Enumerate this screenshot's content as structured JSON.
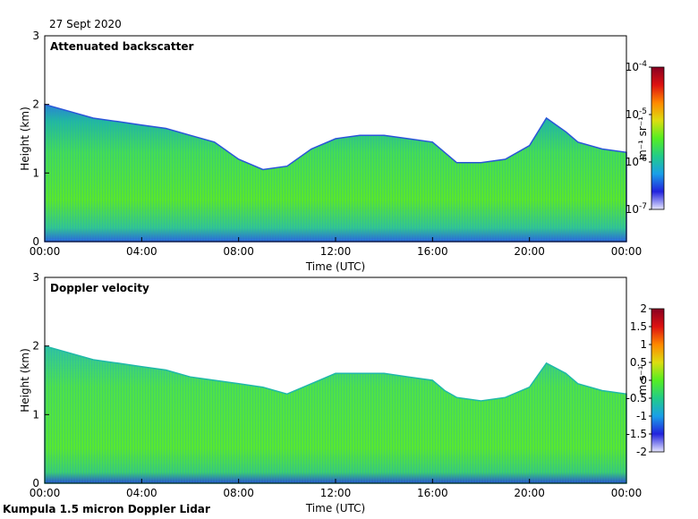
{
  "date_label": "27 Sept 2020",
  "footer_label": "Kumpula 1.5 micron Doppler Lidar",
  "chart_data": [
    {
      "type": "heatmap",
      "title": "Attenuated backscatter",
      "xlabel": "Time (UTC)",
      "ylabel": "Height (km)",
      "xlim": [
        0,
        24
      ],
      "ylim": [
        0,
        3
      ],
      "xticks": [
        0,
        4,
        8,
        12,
        16,
        20,
        24
      ],
      "xtick_labels": [
        "00:00",
        "04:00",
        "08:00",
        "12:00",
        "16:00",
        "20:00",
        "00:00"
      ],
      "yticks": [
        0,
        1,
        2,
        3
      ],
      "ytick_labels": [
        "0",
        "1",
        "2",
        "3"
      ],
      "colorbar": {
        "label": "m⁻¹ sr⁻¹",
        "scale": "log",
        "range": [
          1e-07,
          0.0001
        ],
        "tick_labels": [
          {
            "base": "10",
            "exp": "-4"
          },
          {
            "base": "10",
            "exp": "-5"
          },
          {
            "base": "10",
            "exp": "-6"
          },
          {
            "base": "10",
            "exp": "-7"
          }
        ],
        "colormap": [
          "#e6e6ff",
          "#2222dd",
          "#1a9fe8",
          "#22cc88",
          "#55ee22",
          "#dddd11",
          "#ff8800",
          "#dd1111",
          "#880022"
        ]
      },
      "cloud_top_height_km": {
        "time_h": [
          0,
          1,
          2,
          3,
          4,
          5,
          6,
          7,
          8,
          9,
          10,
          11,
          12,
          13,
          14,
          15,
          16,
          16.5,
          17,
          18,
          19,
          20,
          20.7,
          21.5,
          22,
          23,
          24
        ],
        "height_km": [
          2.0,
          1.9,
          1.8,
          1.75,
          1.7,
          1.65,
          1.55,
          1.45,
          1.2,
          1.05,
          1.1,
          1.35,
          1.5,
          1.55,
          1.55,
          1.5,
          1.45,
          1.3,
          1.15,
          1.15,
          1.2,
          1.4,
          1.8,
          1.6,
          1.45,
          1.35,
          1.3
        ]
      }
    },
    {
      "type": "heatmap",
      "title": "Doppler velocity",
      "xlabel": "Time (UTC)",
      "ylabel": "Height (km)",
      "xlim": [
        0,
        24
      ],
      "ylim": [
        0,
        3
      ],
      "xticks": [
        0,
        4,
        8,
        12,
        16,
        20,
        24
      ],
      "xtick_labels": [
        "00:00",
        "04:00",
        "08:00",
        "12:00",
        "16:00",
        "20:00",
        "00:00"
      ],
      "yticks": [
        0,
        1,
        2,
        3
      ],
      "ytick_labels": [
        "0",
        "1",
        "2",
        "3"
      ],
      "colorbar": {
        "label": "m s⁻¹",
        "scale": "linear",
        "range": [
          -2,
          2
        ],
        "tick_labels": [
          "2",
          "1.5",
          "1",
          "0.5",
          "0",
          "-0.5",
          "-1",
          "-1.5",
          "-2"
        ],
        "colormap": [
          "#e6e6ff",
          "#2222dd",
          "#1a9fe8",
          "#22cc88",
          "#55ee22",
          "#dddd11",
          "#ff8800",
          "#dd1111",
          "#880022"
        ]
      },
      "cloud_top_height_km": {
        "time_h": [
          0,
          1,
          2,
          3,
          4,
          5,
          6,
          7,
          8,
          9,
          10,
          11,
          12,
          13,
          14,
          15,
          16,
          16.5,
          17,
          18,
          19,
          20,
          20.7,
          21.5,
          22,
          23,
          24
        ],
        "height_km": [
          2.0,
          1.9,
          1.8,
          1.75,
          1.7,
          1.65,
          1.55,
          1.5,
          1.45,
          1.4,
          1.3,
          1.45,
          1.6,
          1.6,
          1.6,
          1.55,
          1.5,
          1.35,
          1.25,
          1.2,
          1.25,
          1.4,
          1.75,
          1.6,
          1.45,
          1.35,
          1.3
        ]
      }
    }
  ]
}
